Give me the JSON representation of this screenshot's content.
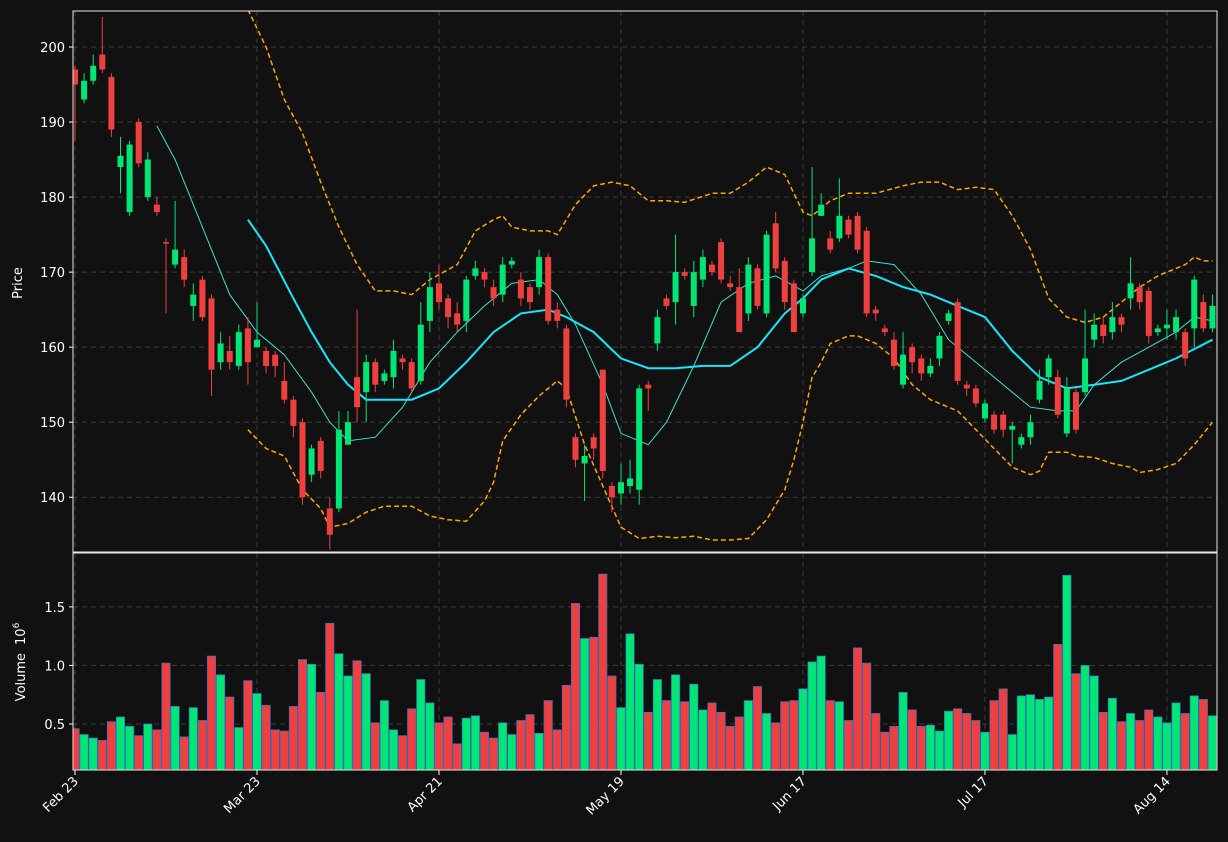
{
  "chart_data": [
    {
      "type": "candlestick",
      "ylabel": "Price",
      "up_color": "#00e676",
      "down_color": "#ef4040",
      "grid": true,
      "xlim": [
        -0.22,
        125.5
      ],
      "ylim": [
        132.7,
        204.8
      ],
      "yticks": [
        140,
        150,
        160,
        170,
        180,
        190,
        200
      ],
      "x": [
        0,
        1,
        2,
        3,
        4,
        5,
        6,
        7,
        8,
        9,
        10,
        11,
        12,
        13,
        14,
        15,
        16,
        17,
        18,
        19,
        20,
        21,
        22,
        23,
        24,
        25,
        26,
        27,
        28,
        29,
        30,
        31,
        32,
        33,
        34,
        35,
        36,
        37,
        38,
        39,
        40,
        41,
        42,
        43,
        44,
        45,
        46,
        47,
        48,
        49,
        50,
        51,
        52,
        53,
        54,
        55,
        56,
        57,
        58,
        59,
        60,
        61,
        62,
        63,
        64,
        65,
        66,
        67,
        68,
        69,
        70,
        71,
        72,
        73,
        74,
        75,
        76,
        77,
        78,
        79,
        80,
        81,
        82,
        83,
        84,
        85,
        86,
        87,
        88,
        89,
        90,
        91,
        92,
        93,
        94,
        95,
        96,
        97,
        98,
        99,
        100,
        101,
        102,
        103,
        104,
        105,
        106,
        107,
        108,
        109,
        110,
        111,
        112,
        113,
        114,
        115,
        116,
        117,
        118,
        119,
        120,
        121,
        122,
        123,
        124,
        125
      ],
      "open": [
        197,
        193,
        195.5,
        199,
        196,
        184,
        178,
        190,
        180,
        179,
        174,
        171,
        172,
        165.5,
        169,
        166.5,
        158,
        159.5,
        157.5,
        162.5,
        160,
        159.5,
        159,
        155.5,
        153,
        150,
        143,
        147.5,
        138.5,
        138.5,
        147,
        156,
        154,
        158,
        155.5,
        156,
        158.5,
        158,
        155.5,
        163.5,
        168.5,
        166.5,
        164.5,
        163.5,
        169.5,
        170,
        168,
        167,
        171,
        169,
        168,
        168,
        172,
        165,
        162.5,
        148,
        144.5,
        148,
        157,
        141.5,
        140.5,
        141.5,
        141,
        155,
        160.5,
        166.5,
        166,
        170,
        165.5,
        169,
        171,
        174,
        168.5,
        168,
        164.5,
        170.5,
        164.5,
        176.5,
        171.5,
        168.5,
        164.5,
        170,
        177.5,
        174.5,
        174.5,
        177,
        177.5,
        175.5,
        165,
        162.5,
        161,
        155,
        160,
        158.5,
        156.5,
        158.5,
        163.5,
        166,
        155,
        154.5,
        150.5,
        151,
        151,
        149,
        147,
        148,
        153,
        156,
        156,
        148.5,
        154,
        154,
        161,
        163,
        162,
        164,
        166.5,
        168,
        167.5,
        162,
        162.5,
        162,
        162,
        162.5,
        166,
        162.5
      ],
      "high": [
        197.5,
        196.5,
        199,
        204,
        196.5,
        188,
        187.5,
        190.5,
        186,
        180,
        174.5,
        179.5,
        173,
        168.5,
        169.5,
        167,
        162,
        161.5,
        163,
        164,
        166,
        160,
        159.5,
        158,
        153.5,
        150.5,
        147,
        148,
        140,
        151.5,
        151.5,
        165,
        159,
        158.5,
        157,
        161,
        159,
        158.5,
        166,
        170,
        171,
        167,
        166,
        169.5,
        171.5,
        170.5,
        169,
        172,
        172,
        170,
        168.5,
        173,
        172.5,
        166,
        163,
        148.5,
        147,
        148.5,
        157,
        142,
        144.5,
        145,
        155,
        155.5,
        165,
        167,
        175,
        170.5,
        171.5,
        173,
        171.5,
        174.5,
        169.5,
        170.5,
        172,
        171,
        175.5,
        178,
        172,
        169,
        167,
        184,
        180.5,
        175.5,
        182.5,
        177.5,
        178,
        176,
        165.5,
        163,
        162,
        162,
        160.5,
        159,
        158.5,
        162,
        165,
        166.5,
        155.5,
        155,
        153,
        151.5,
        151.5,
        150,
        148.5,
        151,
        157,
        159,
        157,
        156,
        154.5,
        165,
        164.5,
        164,
        166,
        164.5,
        172,
        168.5,
        168,
        163,
        165,
        165,
        162.5,
        169.5,
        167,
        167
      ],
      "low": [
        187.5,
        192.5,
        195,
        196.5,
        188,
        180.5,
        177.5,
        184,
        179.5,
        177.5,
        164.5,
        170.5,
        168,
        163.5,
        163.5,
        153.5,
        157,
        157,
        157,
        155,
        160,
        156.5,
        156,
        152.5,
        148,
        139,
        142,
        142.5,
        133,
        138,
        147,
        150,
        150,
        154,
        155,
        154.5,
        157,
        154,
        155,
        162,
        165,
        162.5,
        162,
        162,
        169,
        168,
        165.5,
        166,
        170.5,
        165.5,
        165,
        167,
        163,
        162.5,
        152,
        144,
        139.5,
        145,
        142.5,
        138,
        139,
        140.5,
        139,
        151.5,
        159.5,
        165,
        163,
        169,
        164,
        168,
        169.5,
        168.5,
        167.5,
        162,
        163.5,
        165,
        164,
        170,
        165,
        162,
        164,
        169.5,
        177.5,
        172.5,
        174,
        174.5,
        172.5,
        164,
        163.5,
        161.5,
        157,
        154.5,
        156.5,
        155.5,
        156,
        157.5,
        163,
        155,
        153.5,
        152,
        150,
        148.5,
        148,
        144.5,
        146.5,
        147,
        152.5,
        155,
        150.5,
        148,
        148.5,
        153.5,
        160,
        160.5,
        161,
        162,
        165,
        165,
        160.5,
        161.5,
        161,
        161,
        157.5,
        160,
        162,
        162
      ],
      "close": [
        195,
        195.5,
        197.5,
        197,
        189,
        185.5,
        187,
        184.5,
        185,
        178,
        173.8,
        173,
        169,
        167,
        164,
        157,
        160.5,
        158,
        162,
        158,
        161,
        157.5,
        157.5,
        153,
        149.5,
        140,
        146.5,
        143.5,
        135,
        149,
        150,
        152,
        158,
        155,
        156.5,
        159.5,
        158,
        154.5,
        163,
        168,
        166,
        164,
        163,
        169,
        170.5,
        169,
        166.5,
        171,
        171.5,
        166.5,
        166,
        172,
        163.5,
        163.5,
        153,
        145,
        145.5,
        146.5,
        143.5,
        140,
        142,
        142.5,
        154.5,
        154.5,
        164,
        165.5,
        170,
        169.5,
        170,
        172,
        170,
        169,
        168,
        162,
        171,
        165.5,
        175,
        170.5,
        166,
        162,
        166.5,
        174.5,
        179,
        173,
        177.5,
        175,
        173,
        164.5,
        164.5,
        162,
        157.5,
        159,
        158,
        156.5,
        157.5,
        161.5,
        164.5,
        155.5,
        154.5,
        152.5,
        152.5,
        149,
        149,
        149.5,
        148,
        150,
        155.5,
        158.5,
        151,
        154.5,
        149,
        158.5,
        163,
        161.5,
        164,
        163,
        168.5,
        166,
        161.5,
        162.5,
        163,
        164,
        158.5,
        169,
        162.5,
        165.5
      ],
      "series": [
        {
          "color": "#40e0d0",
          "width": 1,
          "style": "solid",
          "x": [
            9,
            11,
            14,
            17,
            20,
            23,
            26,
            28,
            30,
            33,
            36,
            39,
            42,
            45,
            48,
            51,
            53,
            55,
            58,
            60,
            63,
            65,
            68,
            71,
            74,
            77,
            80,
            82,
            85,
            87,
            90,
            93,
            96,
            99,
            102,
            105,
            108,
            110,
            112,
            115,
            118,
            121,
            123,
            125
          ],
          "values": [
            189.5,
            185,
            176,
            167,
            162,
            159,
            154,
            150,
            147.5,
            148,
            152,
            158,
            162,
            165.5,
            168.5,
            169,
            167,
            163,
            155,
            148.5,
            147,
            150,
            157.5,
            166,
            168.5,
            169.5,
            167.5,
            169.5,
            170.5,
            171.5,
            171,
            167,
            161,
            158,
            155,
            152,
            151.5,
            151.5,
            155,
            158,
            160,
            162,
            164,
            163.5
          ]
        },
        {
          "color": "#18e6ff",
          "width": 2,
          "style": "solid",
          "x": [
            19,
            21,
            24,
            26,
            28,
            30,
            32,
            34,
            37,
            40,
            43,
            46,
            49,
            52,
            54,
            57,
            60,
            63,
            66,
            69,
            72,
            75,
            78,
            80,
            82,
            85,
            88,
            91,
            94,
            97,
            100,
            103,
            106,
            109,
            112,
            115,
            118,
            121,
            125
          ],
          "values": [
            177,
            173.5,
            166.5,
            162,
            158,
            155,
            153,
            153,
            153,
            154.5,
            158,
            162,
            164.5,
            165,
            164,
            162,
            158.5,
            157.2,
            157.2,
            157.5,
            157.5,
            160,
            164.5,
            166.5,
            169,
            170.5,
            169.5,
            168,
            167,
            165.5,
            164,
            159.5,
            156,
            154.5,
            155,
            155.5,
            157,
            158.5,
            161
          ]
        },
        {
          "color": "#ffa500",
          "width": 1.5,
          "style": "dashed",
          "x": [
            19,
            21,
            23,
            25,
            27,
            29,
            31,
            33,
            35,
            37,
            39,
            42,
            44,
            46,
            47,
            48,
            50,
            52,
            53,
            55,
            57,
            59,
            61,
            63,
            65,
            67,
            70,
            72,
            74,
            76,
            78,
            80,
            81,
            83,
            85,
            88,
            91,
            93,
            95,
            97,
            99,
            101,
            103,
            105,
            107,
            109,
            111,
            113,
            115,
            117,
            119,
            121,
            122,
            123,
            124,
            125
          ],
          "values": [
            205,
            200,
            193,
            188.5,
            182,
            176,
            171,
            167.5,
            167.5,
            167,
            169,
            171,
            175.5,
            177,
            177.5,
            176,
            175.5,
            175.5,
            175,
            179,
            181.5,
            182,
            181.5,
            179.5,
            179.5,
            179.3,
            180.5,
            180.5,
            182,
            184,
            183,
            178,
            177.5,
            179.5,
            180.5,
            180.5,
            181.5,
            182,
            182,
            181,
            181.3,
            181,
            177.5,
            173,
            166.5,
            164,
            163.3,
            164,
            166,
            168,
            169.5,
            170.5,
            171,
            172,
            171.5,
            171.5
          ]
        },
        {
          "color": "#ffa500",
          "width": 1.5,
          "style": "dashed",
          "x": [
            19,
            21,
            23,
            25,
            27,
            28,
            30,
            32,
            34,
            37,
            39,
            41,
            43,
            45,
            46,
            47,
            49,
            51,
            53,
            54,
            56,
            58,
            60,
            62,
            64,
            66,
            68,
            70,
            72,
            74,
            76,
            78,
            79,
            80,
            81,
            82,
            83,
            85,
            86,
            88,
            90,
            92,
            94,
            96,
            97,
            99,
            101,
            103,
            105,
            106,
            107,
            109,
            110,
            112,
            114,
            116,
            117,
            119,
            121,
            123,
            125
          ],
          "values": [
            149,
            146.5,
            145.5,
            141,
            138.5,
            136,
            136.5,
            138,
            138.8,
            138.8,
            137.5,
            137,
            136.8,
            139.5,
            142,
            147.5,
            151,
            153.5,
            155.5,
            154.5,
            147,
            141.5,
            136,
            134.5,
            134.8,
            134.6,
            134.8,
            134.3,
            134.3,
            134.5,
            137,
            141,
            145,
            150,
            156,
            158,
            160.5,
            161.5,
            161.5,
            160.5,
            158.5,
            155,
            153,
            152,
            151.5,
            149,
            146.5,
            144,
            143,
            143.5,
            146,
            146,
            145.5,
            145.3,
            144.5,
            144,
            143.3,
            143.7,
            144.5,
            147,
            150
          ]
        }
      ]
    },
    {
      "type": "bar",
      "ylabel": "Volume",
      "scale_base": 10,
      "scale_exponent": 6,
      "edge_color": "#3a6fc4",
      "grid": true,
      "xlim": [
        -0.22,
        125.5
      ],
      "ylim": [
        0.107,
        1.96
      ],
      "yticks": [
        0.5,
        {
          "value": 1,
          "label": "1.0"
        },
        1.5
      ],
      "xticks": [
        {
          "value": 0,
          "label": "Feb 23"
        },
        {
          "value": 20,
          "label": "Mar 23"
        },
        {
          "value": 40,
          "label": "Apr 21"
        },
        {
          "value": 60,
          "label": "May 19"
        },
        {
          "value": 80,
          "label": "Jun 17"
        },
        {
          "value": 100,
          "label": "Jul 17"
        },
        {
          "value": 120,
          "label": "Aug 14"
        }
      ],
      "values": [
        0.46,
        0.41,
        0.38,
        0.36,
        0.52,
        0.56,
        0.48,
        0.4,
        0.5,
        0.45,
        1.02,
        0.65,
        0.39,
        0.64,
        0.53,
        1.08,
        0.92,
        0.73,
        0.47,
        0.87,
        0.76,
        0.66,
        0.45,
        0.44,
        0.65,
        1.05,
        1.01,
        0.77,
        1.36,
        1.1,
        0.91,
        1.04,
        0.93,
        0.51,
        0.7,
        0.45,
        0.4,
        0.63,
        0.88,
        0.68,
        0.51,
        0.56,
        0.33,
        0.55,
        0.57,
        0.43,
        0.38,
        0.51,
        0.41,
        0.53,
        0.58,
        0.42,
        0.7,
        0.45,
        0.83,
        1.53,
        1.23,
        1.24,
        1.78,
        0.91,
        0.64,
        1.27,
        1.01,
        0.6,
        0.88,
        0.7,
        0.92,
        0.69,
        0.84,
        0.62,
        0.68,
        0.6,
        0.48,
        0.56,
        0.7,
        0.82,
        0.59,
        0.51,
        0.69,
        0.7,
        0.8,
        1.03,
        1.08,
        0.7,
        0.69,
        0.53,
        1.15,
        1.02,
        0.59,
        0.43,
        0.48,
        0.77,
        0.62,
        0.48,
        0.49,
        0.44,
        0.61,
        0.63,
        0.59,
        0.53,
        0.43,
        0.7,
        0.8,
        0.41,
        0.74,
        0.75,
        0.71,
        0.73,
        1.18,
        1.77,
        0.93,
        1.0,
        0.91,
        0.6,
        0.72,
        0.52,
        0.59,
        0.53,
        0.62,
        0.56,
        0.51,
        0.68,
        0.59,
        0.74,
        0.71,
        0.57
      ]
    }
  ]
}
